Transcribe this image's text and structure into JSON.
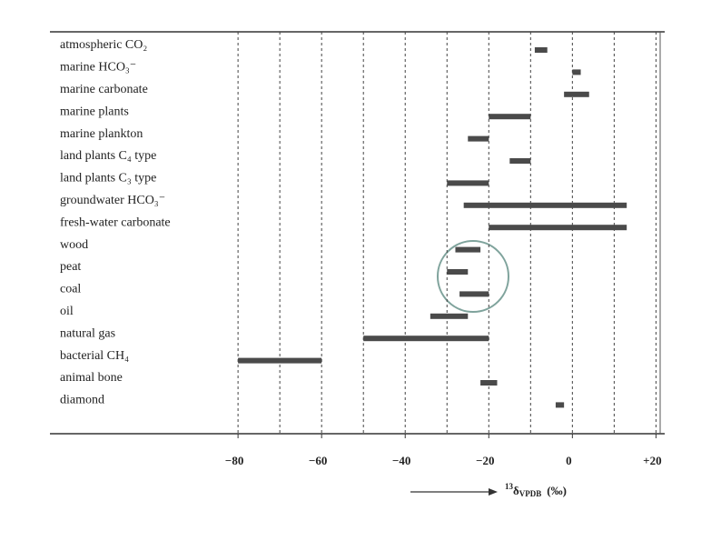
{
  "chart_data": {
    "type": "range-bar",
    "categories": [
      "atmospheric CO₂",
      "marine HCO₃⁻",
      "marine carbonate",
      "marine plants",
      "marine plankton",
      "land plants C₄ type",
      "land plants C₃ type",
      "groundwater HCO₃⁻",
      "fresh-water carbonate",
      "wood",
      "peat",
      "coal",
      "oil",
      "natural gas",
      "bacterial CH₄",
      "animal bone",
      "diamond"
    ],
    "values": [
      [
        -9,
        -6
      ],
      [
        0,
        2
      ],
      [
        -2,
        4
      ],
      [
        -20,
        -10
      ],
      [
        -25,
        -20
      ],
      [
        -15,
        -10
      ],
      [
        -30,
        -20
      ],
      [
        -26,
        13
      ],
      [
        -20,
        13
      ],
      [
        -28,
        -22
      ],
      [
        -30,
        -25
      ],
      [
        -27,
        -20
      ],
      [
        -34,
        -25
      ],
      [
        -50,
        -20
      ],
      [
        -80,
        -60
      ],
      [
        -22,
        -18
      ],
      [
        -4,
        -2
      ]
    ],
    "color": "#4a4a4a",
    "xlim": [
      -125,
      21
    ],
    "xticks": [
      {
        "value": -80,
        "label": "−80"
      },
      {
        "value": -60,
        "label": "−60"
      },
      {
        "value": -40,
        "label": "−40"
      },
      {
        "value": -20,
        "label": "−20"
      },
      0,
      {
        "value": 20,
        "label": "+20"
      }
    ],
    "minor_xticks": [
      -70,
      -50,
      -30,
      -10,
      10
    ],
    "grid": true,
    "xlabel": {
      "sup": "13",
      "main": "δ",
      "sub": "VPDB",
      "unit": "(‰)"
    }
  }
}
